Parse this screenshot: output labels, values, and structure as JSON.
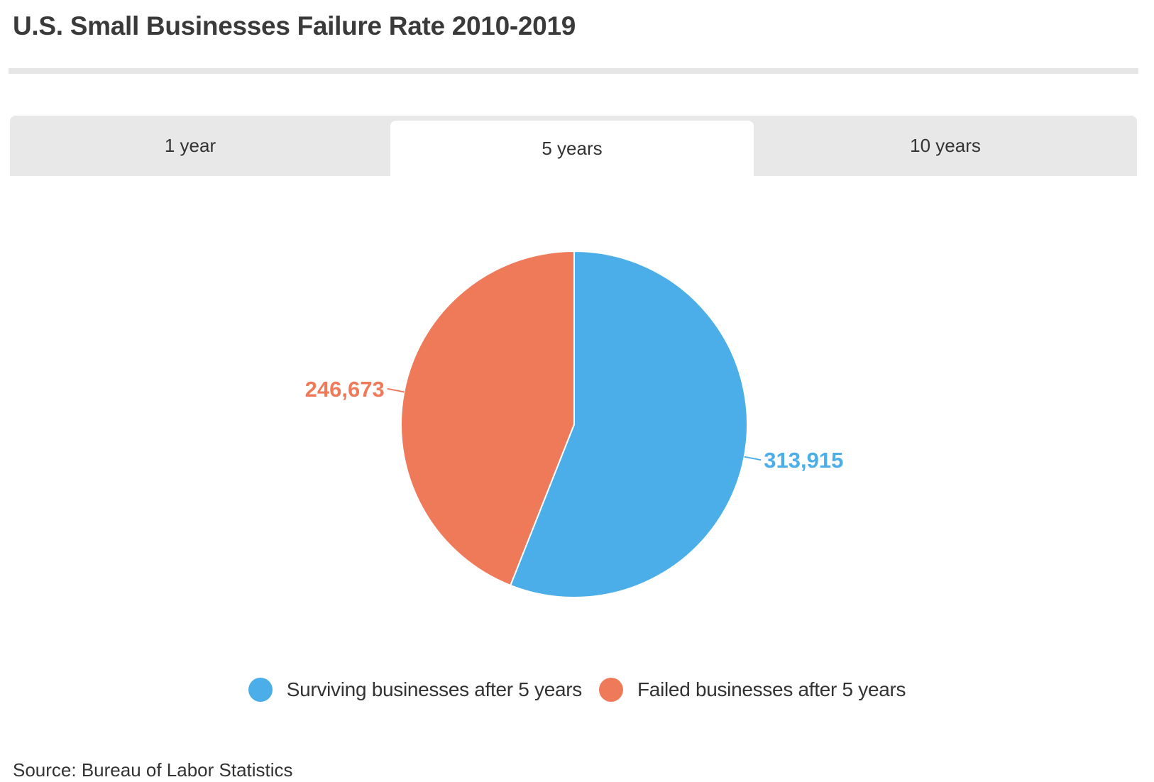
{
  "header": {
    "title": "U.S. Small Businesses Failure Rate 2010-2019"
  },
  "tabs": [
    {
      "label": "1 year",
      "active": false
    },
    {
      "label": "5 years",
      "active": true
    },
    {
      "label": "10 years",
      "active": false
    }
  ],
  "chart_data": {
    "type": "pie",
    "title": "",
    "series": [
      {
        "slices": [
          {
            "label": "Surviving businesses after 5 years",
            "value": 313915,
            "value_label": "313,915",
            "color": "#4baee8"
          },
          {
            "label": "Failed businesses after 5 years",
            "value": 246673,
            "value_label": "246,673",
            "color": "#ef7a5a"
          }
        ]
      }
    ],
    "start_angle_deg": 0,
    "direction": "clockwise",
    "legend_position": "bottom"
  },
  "footer": {
    "source": "Source: Bureau of Labor Statistics"
  }
}
